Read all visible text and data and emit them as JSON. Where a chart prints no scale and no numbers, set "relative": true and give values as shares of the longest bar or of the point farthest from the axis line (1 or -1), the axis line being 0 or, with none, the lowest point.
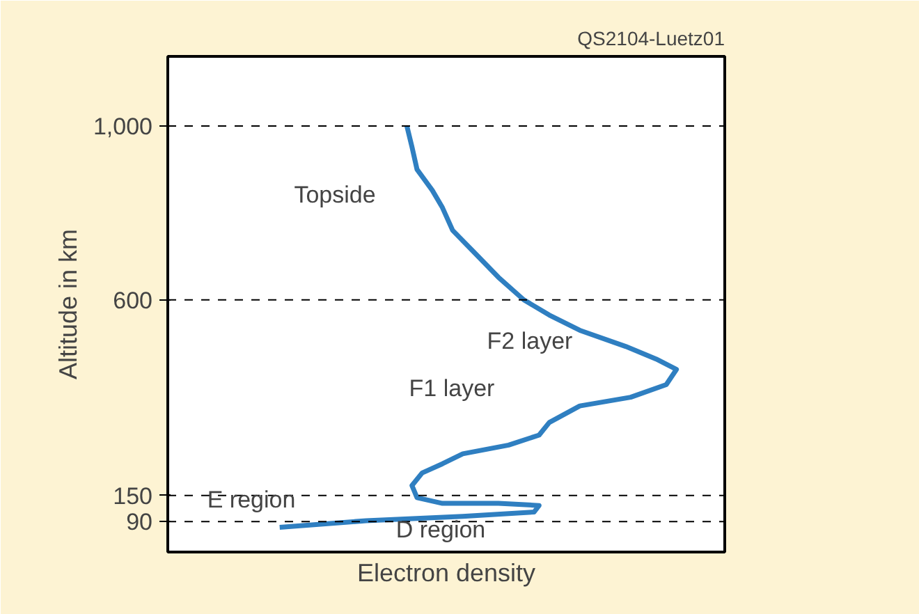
{
  "chart_data": {
    "type": "line",
    "orientation": "horizontal",
    "relative": true,
    "xlabel": "Electron density",
    "ylabel": "Altitude in km",
    "ylim": [
      20,
      1160
    ],
    "yticks": [
      90,
      150,
      600,
      {
        "value": 1000,
        "label": "1,000"
      }
    ],
    "tick_labels": "y",
    "grid": false,
    "x": [
      1000,
      952,
      900,
      852,
      812,
      760,
      712,
      652,
      600,
      565,
      530,
      493,
      464,
      440,
      405,
      376,
      356,
      318,
      289,
      266,
      246,
      223,
      202,
      173,
      145,
      132,
      132,
      127,
      112,
      102,
      92,
      77
    ],
    "series": [
      {
        "color": "#2f7fc1",
        "values": [
          0.47,
          0.48,
          0.49,
          0.52,
          0.54,
          0.56,
          0.6,
          0.65,
          0.7,
          0.75,
          0.81,
          0.9,
          0.96,
          1,
          0.98,
          0.91,
          0.81,
          0.75,
          0.73,
          0.67,
          0.58,
          0.54,
          0.5,
          0.48,
          0.49,
          0.54,
          0.65,
          0.73,
          0.72,
          0.58,
          0.39,
          0.22
        ]
      }
    ],
    "ref_lines": [
      {
        "axis": "y",
        "value": 90,
        "color": "#000000",
        "line_style": "dashed"
      },
      {
        "axis": "y",
        "value": 150,
        "color": "#000000",
        "line_style": "dashed"
      },
      {
        "axis": "y",
        "value": 600,
        "color": "#000000",
        "line_style": "dashed"
      },
      {
        "axis": "y",
        "value": 1000,
        "color": "#000000",
        "line_style": "dashed"
      }
    ],
    "annotations": [
      "QS2104-Luetz01",
      "Topside",
      "F2 layer",
      "F1 layer",
      "E region",
      "D region"
    ],
    "line_style": "solid",
    "marker": "none"
  }
}
